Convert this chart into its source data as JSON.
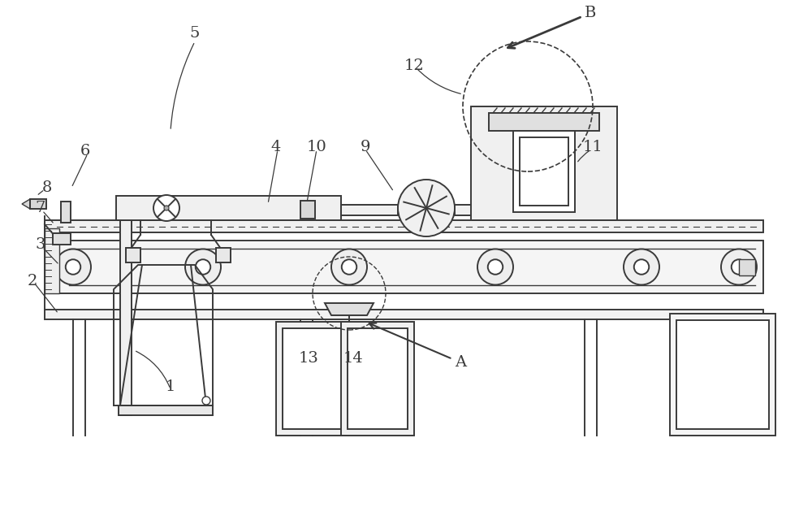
{
  "bg_color": "#ffffff",
  "lc": "#3a3a3a",
  "lw": 1.4,
  "fig_w": 10.0,
  "fig_h": 6.51,
  "dpi": 100
}
